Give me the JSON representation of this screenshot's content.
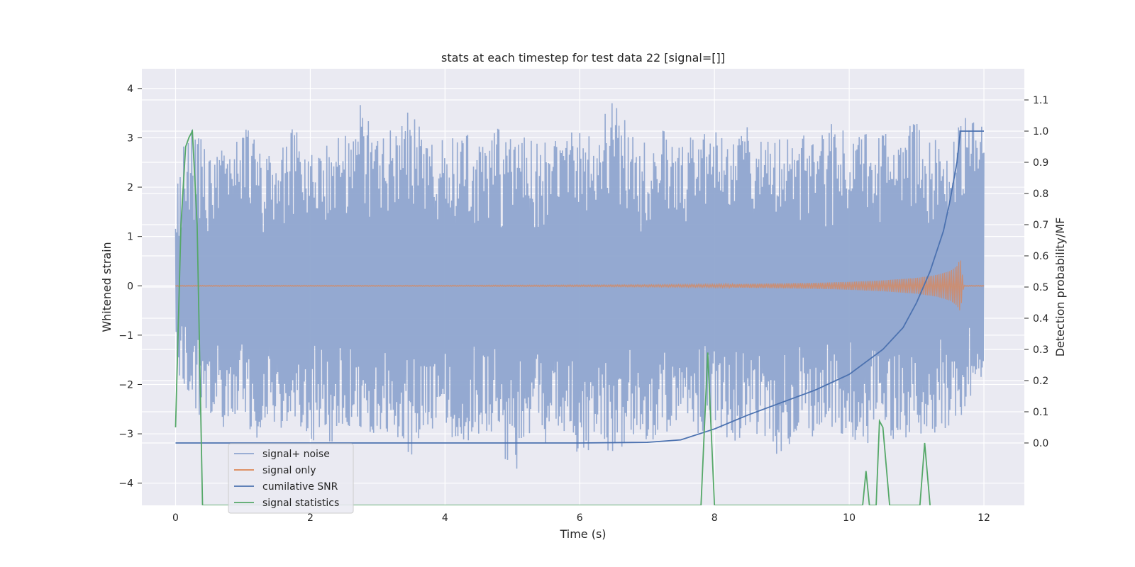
{
  "chart_data": {
    "type": "line",
    "title": "stats at each timestep for test data 22 [signal=[]]",
    "xlabel": "Time (s)",
    "ylabel": "Whitened strain",
    "ylabel_right": "Detection probability/MF",
    "xlim": [
      -0.5,
      12.6
    ],
    "ylim": [
      -4.45,
      4.4
    ],
    "ylim_right": [
      -0.2,
      1.2
    ],
    "x_ticks": [
      "0",
      "2",
      "4",
      "6",
      "8",
      "10",
      "12"
    ],
    "y_ticks": [
      "−4",
      "−3",
      "−2",
      "−1",
      "0",
      "1",
      "2",
      "3",
      "4"
    ],
    "y_ticks_right": [
      "0.0",
      "0.1",
      "0.2",
      "0.3",
      "0.4",
      "0.5",
      "0.6",
      "0.7",
      "0.8",
      "0.9",
      "1.0",
      "1.1"
    ],
    "grid": true,
    "legend_position": "lower-left",
    "colors": {
      "signal_noise": "#8fa5cf",
      "signal_only": "#dd8452",
      "cumulative_snr": "#4c72b0",
      "signal_statistics": "#55a868",
      "plot_bg": "#eaeaf2",
      "grid": "#ffffff"
    },
    "series": [
      {
        "name": "signal+ noise",
        "axis": "left",
        "x": [
          0,
          0.25,
          0.5,
          0.75,
          1,
          1.25,
          1.5,
          1.75,
          2,
          2.25,
          2.5,
          2.75,
          3,
          3.25,
          3.5,
          3.75,
          4,
          4.25,
          4.5,
          4.75,
          5,
          5.25,
          5.5,
          5.75,
          6,
          6.25,
          6.5,
          6.75,
          7,
          7.25,
          7.5,
          7.75,
          8,
          8.25,
          8.5,
          8.75,
          9,
          9.25,
          9.5,
          9.75,
          10,
          10.25,
          10.5,
          10.75,
          11,
          11.25,
          11.5,
          11.75,
          12
        ],
        "envelope_high": [
          2.3,
          3.4,
          2.6,
          2.8,
          3.5,
          2.7,
          2.9,
          3.2,
          2.8,
          3.0,
          3.1,
          3.7,
          3.0,
          3.2,
          3.6,
          2.9,
          3.0,
          3.2,
          2.9,
          3.3,
          3.0,
          3.1,
          2.9,
          3.2,
          3.1,
          3.0,
          4.0,
          3.1,
          3.0,
          3.2,
          2.9,
          3.1,
          3.2,
          2.9,
          3.3,
          3.1,
          3.0,
          3.2,
          2.9,
          3.3,
          3.2,
          3.1,
          3.1,
          3.0,
          3.4,
          3.2,
          3.0,
          3.5,
          3.2
        ],
        "envelope_low": [
          -1.8,
          -2.5,
          -2.8,
          -2.9,
          -2.7,
          -3.3,
          -3.0,
          -2.9,
          -3.1,
          -3.3,
          -3.0,
          -2.9,
          -3.2,
          -3.0,
          -3.5,
          -2.9,
          -3.0,
          -3.3,
          -3.1,
          -3.0,
          -4.1,
          -3.0,
          -3.2,
          -3.0,
          -3.7,
          -3.0,
          -3.6,
          -3.0,
          -3.2,
          -3.0,
          -2.9,
          -3.1,
          -3.0,
          -3.2,
          -3.0,
          -3.1,
          -3.8,
          -3.0,
          -3.2,
          -3.0,
          -3.1,
          -3.3,
          -3.0,
          -3.2,
          -3.0,
          -3.1,
          -2.9,
          -2.5,
          -1.9
        ]
      },
      {
        "name": "signal only",
        "axis": "left",
        "x": [
          0,
          2,
          4,
          6,
          7,
          8,
          8.5,
          9,
          9.5,
          10,
          10.5,
          11,
          11.3,
          11.5,
          11.6,
          11.65,
          11.7,
          12
        ],
        "envelope_high": [
          0.01,
          0.01,
          0.01,
          0.015,
          0.02,
          0.03,
          0.04,
          0.05,
          0.06,
          0.08,
          0.11,
          0.16,
          0.22,
          0.3,
          0.4,
          0.55,
          0.01,
          0.01
        ],
        "envelope_low": [
          -0.01,
          -0.01,
          -0.01,
          -0.015,
          -0.02,
          -0.03,
          -0.04,
          -0.05,
          -0.06,
          -0.08,
          -0.11,
          -0.16,
          -0.22,
          -0.3,
          -0.4,
          -0.52,
          -0.01,
          -0.01
        ]
      },
      {
        "name": "cumilative SNR",
        "axis": "right",
        "x": [
          0,
          6,
          7,
          7.5,
          8,
          8.5,
          9,
          9.5,
          10,
          10.5,
          10.8,
          11,
          11.2,
          11.4,
          11.5,
          11.6,
          11.65,
          11.8,
          12
        ],
        "y": [
          0.0,
          0.0,
          0.002,
          0.01,
          0.045,
          0.09,
          0.13,
          0.17,
          0.22,
          0.3,
          0.37,
          0.45,
          0.55,
          0.68,
          0.78,
          0.9,
          1.0,
          1.0,
          1.0
        ]
      },
      {
        "name": "signal statistics",
        "axis": "right",
        "x": [
          0,
          0.08,
          0.15,
          0.2,
          0.25,
          0.32,
          0.4,
          7.8,
          7.9,
          8.0,
          10.2,
          10.25,
          10.3,
          10.4,
          10.45,
          10.5,
          10.6,
          11.05,
          11.12,
          11.2
        ],
        "y": [
          0.05,
          0.7,
          0.95,
          0.98,
          1.0,
          0.7,
          -0.2,
          -0.2,
          0.29,
          -0.2,
          -0.2,
          -0.09,
          -0.2,
          -0.2,
          0.07,
          0.05,
          -0.2,
          -0.2,
          0.0,
          -0.2
        ]
      }
    ]
  }
}
